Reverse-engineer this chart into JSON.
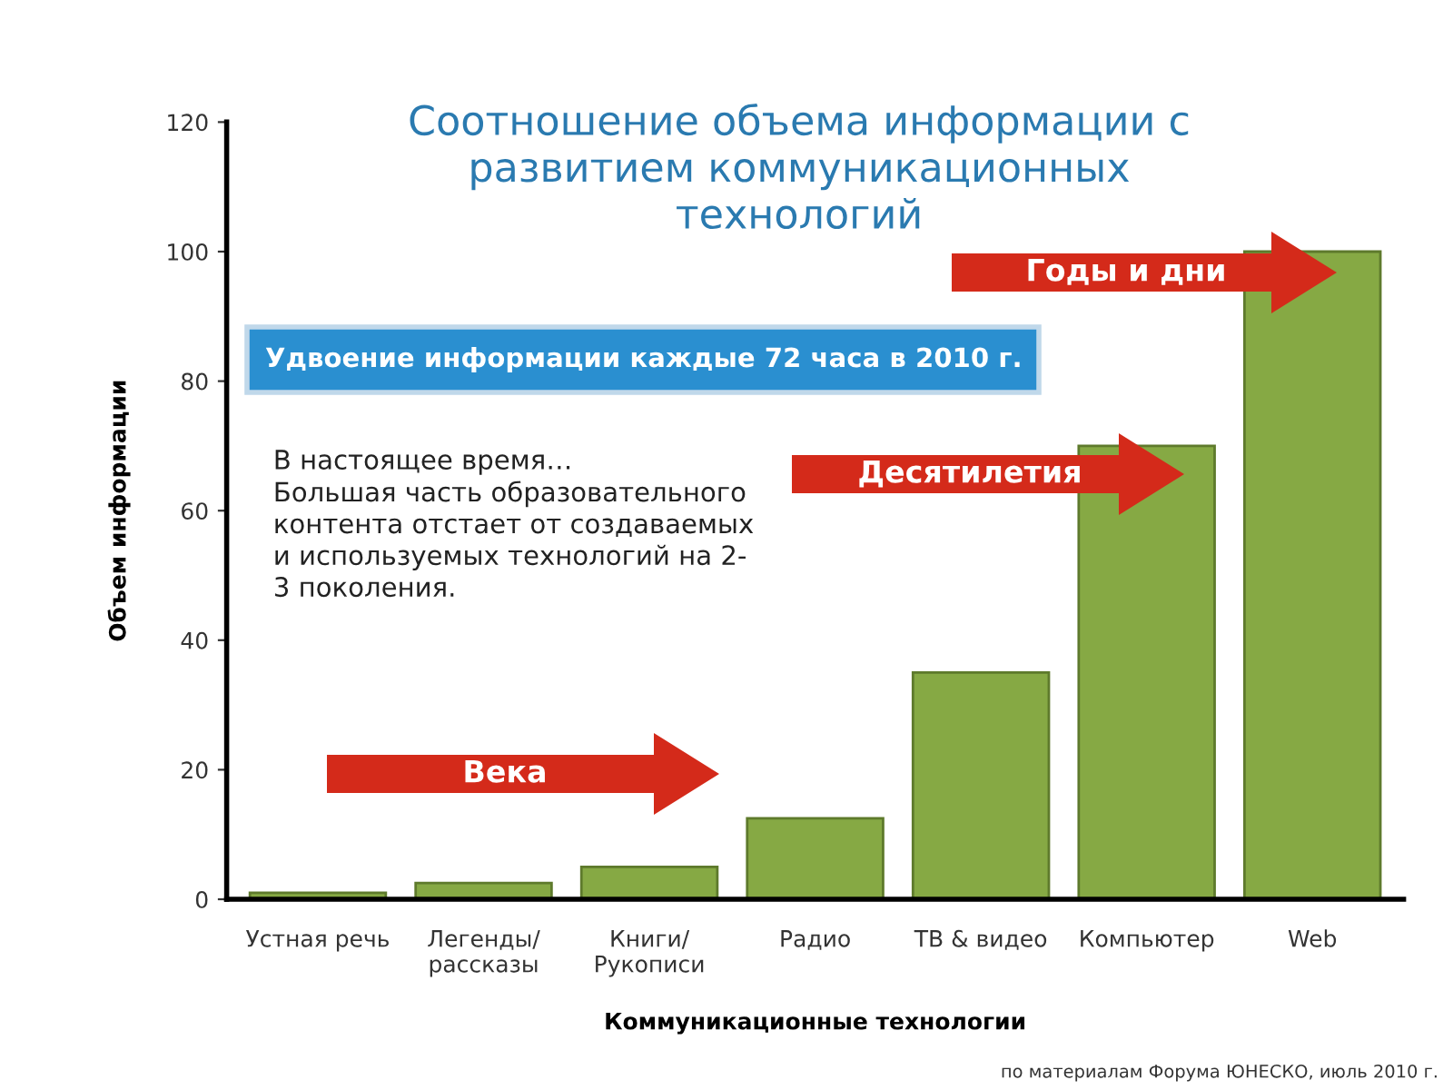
{
  "chart_data": {
    "type": "bar",
    "title": "Соотношение объема информации с\nразвитием коммуникационных\nтехнологий",
    "xlabel": "Коммуникационные технологии",
    "ylabel": "Объем информации",
    "categories": [
      "Устная речь",
      "Легенды/\nрассказы",
      "Книги/\nРукописи",
      "Радио",
      "ТВ & видео",
      "Компьютер",
      "Web"
    ],
    "values": [
      1,
      2.5,
      5,
      12.5,
      35,
      70,
      100
    ],
    "color": "#86a944",
    "ylim": [
      0,
      120
    ],
    "yticks": [
      0,
      20,
      40,
      60,
      80,
      100,
      120
    ],
    "grid": false,
    "legend": false,
    "annotations": [
      "Годы и дни",
      "Удвоение информации каждые 72 часа в 2010 г.",
      "В настоящее время…\nБольшая часть образовательного\nконтента отстает от создаваемых\nи используемых технологий на 2-\n3 поколения.",
      "Десятилетия",
      "Века",
      "по материалам Форума ЮНЕСКО, июль 2010 г."
    ]
  }
}
